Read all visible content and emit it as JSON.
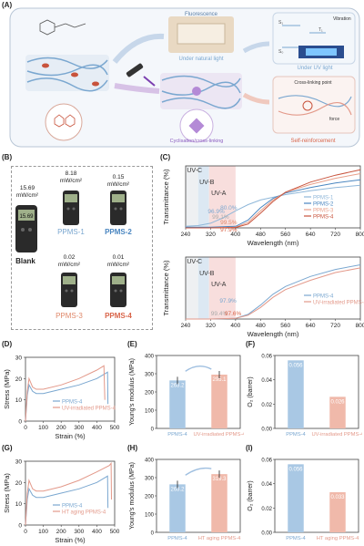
{
  "panels": {
    "A": "(A)",
    "B": "(B)",
    "C": "(C)",
    "D": "(D)",
    "E": "(E)",
    "F": "(F)",
    "G": "(G)",
    "H": "(H)",
    "I": "(I)"
  },
  "panel_a": {
    "fluorescence": "Fluorescence",
    "natural_light": "Under natural light",
    "uv_light": "Under UV light",
    "vibration": "Vibration",
    "cross_link_point": "Cross-linking point",
    "force": "force",
    "cyclisation": "Cyclisation/cross-linking",
    "self_reinforcement": "Self-reinforcement",
    "s1": "S₁",
    "s0": "S₀",
    "t1": "T₁"
  },
  "panel_b": {
    "meters": [
      {
        "value": "15.69",
        "unit": "mW/cm²",
        "name": "Blank",
        "name_color": "#222222",
        "screen": "15.69"
      },
      {
        "value": "8.18",
        "unit": "mW/cm²",
        "name": "PPMS-1",
        "name_color": "#7aa7d0",
        "screen": "8.18"
      },
      {
        "value": "0.15",
        "unit": "mW/cm²",
        "name": "PPMS-2",
        "name_color": "#7aa7d0",
        "screen": "0.15"
      },
      {
        "value": "0.02",
        "unit": "mW/cm²",
        "name": "PPMS-3",
        "name_color": "#e0896b",
        "screen": "0.02"
      },
      {
        "value": "0.01",
        "unit": "mW/cm²",
        "name": "PPMS-4",
        "name_color": "#d9654a",
        "screen": "0.01"
      }
    ]
  },
  "chart_data": [
    {
      "id": "C-top",
      "type": "line",
      "xlabel": "Wavelength (nm)",
      "ylabel": "Transmittance (%)",
      "xlim": [
        240,
        800
      ],
      "xticks": [
        "240",
        "320",
        "400",
        "480",
        "560",
        "640",
        "720",
        "800"
      ],
      "bands": [
        "UV-C",
        "UV-B",
        "UV-A"
      ],
      "annotations": [
        "80.0%",
        "96.9%",
        "99.1%",
        "99.5%",
        "97.9%"
      ],
      "series": [
        {
          "name": "PPMS-1",
          "color": "#8fb7d9",
          "x": [
            240,
            280,
            320,
            360,
            400,
            440,
            480,
            560,
            640,
            720,
            800
          ],
          "y": [
            2,
            3,
            6,
            13,
            22,
            30,
            36,
            43,
            48,
            52,
            55
          ]
        },
        {
          "name": "PPMS-2",
          "color": "#4a86c0",
          "x": [
            240,
            320,
            400,
            440,
            480,
            520,
            560,
            640,
            720,
            800
          ],
          "y": [
            1,
            1,
            2,
            10,
            26,
            38,
            45,
            52,
            58,
            62
          ]
        },
        {
          "name": "PPMS-3",
          "color": "#e8a08a",
          "x": [
            240,
            320,
            400,
            440,
            480,
            520,
            560,
            640,
            720,
            800
          ],
          "y": [
            0,
            0,
            1,
            7,
            22,
            36,
            46,
            56,
            64,
            70
          ]
        },
        {
          "name": "PPMS-4",
          "color": "#c8533c",
          "x": [
            240,
            320,
            400,
            440,
            480,
            520,
            560,
            640,
            720,
            800
          ],
          "y": [
            0,
            0,
            0.5,
            5,
            19,
            34,
            46,
            59,
            68,
            75
          ]
        }
      ]
    },
    {
      "id": "C-bottom",
      "type": "line",
      "xlabel": "Wavelength (nm)",
      "ylabel": "Transmittance (%)",
      "xlim": [
        240,
        800
      ],
      "xticks": [
        "240",
        "320",
        "400",
        "480",
        "560",
        "640",
        "720",
        "800"
      ],
      "bands": [
        "UV-C",
        "UV-B",
        "UV-A"
      ],
      "annotations": [
        "97.9%",
        "99.4%",
        "97.6%"
      ],
      "series": [
        {
          "name": "PPMS-4",
          "color": "#7aa7d0",
          "x": [
            240,
            320,
            400,
            440,
            480,
            520,
            560,
            640,
            720,
            800
          ],
          "y": [
            0,
            0,
            1,
            6,
            18,
            32,
            42,
            55,
            64,
            70
          ]
        },
        {
          "name": "UV-irradiated PPMS-4",
          "color": "#e3998a",
          "x": [
            240,
            320,
            400,
            440,
            480,
            520,
            560,
            640,
            720,
            800
          ],
          "y": [
            0,
            0,
            1,
            5,
            15,
            28,
            38,
            50,
            60,
            66
          ]
        }
      ]
    },
    {
      "id": "D",
      "type": "line",
      "xlabel": "Strain (%)",
      "ylabel": "Stress (MPa)",
      "xlim": [
        0,
        500
      ],
      "ylim": [
        0,
        30
      ],
      "xticks": [
        "0",
        "100",
        "200",
        "300",
        "400",
        "500"
      ],
      "yticks": [
        "0",
        "10",
        "20",
        "30"
      ],
      "series": [
        {
          "name": "PPMS-4",
          "color": "#7aa7d0",
          "x": [
            0,
            10,
            20,
            40,
            60,
            100,
            200,
            300,
            400,
            440,
            460,
            462
          ],
          "y": [
            0,
            12,
            17,
            14,
            13,
            13,
            15,
            17,
            20,
            22,
            23,
            8
          ]
        },
        {
          "name": "UV-irradiated PPMS-4",
          "color": "#e3998a",
          "x": [
            0,
            10,
            20,
            40,
            60,
            100,
            200,
            300,
            400,
            440,
            445
          ],
          "y": [
            0,
            14,
            20,
            16,
            15,
            15,
            17,
            20,
            24,
            26,
            10
          ]
        }
      ]
    },
    {
      "id": "E",
      "type": "bar",
      "ylabel": "Young's modulus (MPa)",
      "ylim": [
        0,
        400
      ],
      "yticks": [
        "0",
        "100",
        "200",
        "300",
        "400"
      ],
      "categories": [
        "PPMS-4",
        "UV-irradiated PPMS-4"
      ],
      "values": [
        263.2,
        295.1
      ],
      "value_labels": [
        "263.2",
        "295.1"
      ],
      "colors": [
        "#a9c8e4",
        "#f0b9aa"
      ]
    },
    {
      "id": "F",
      "type": "bar",
      "ylabel": "O₂ (barrer)",
      "ylim": [
        0,
        0.06
      ],
      "yticks": [
        "0.00",
        "0.02",
        "0.04",
        "0.06"
      ],
      "categories": [
        "PPMS-4",
        "UV-irradiated PPMS-4"
      ],
      "values": [
        0.056,
        0.026
      ],
      "value_labels": [
        "0.056",
        "0.026"
      ],
      "colors": [
        "#a9c8e4",
        "#f0b9aa"
      ]
    },
    {
      "id": "G",
      "type": "line",
      "xlabel": "Strain (%)",
      "ylabel": "Stress (MPa)",
      "xlim": [
        0,
        500
      ],
      "ylim": [
        0,
        30
      ],
      "xticks": [
        "0",
        "100",
        "200",
        "300",
        "400",
        "500"
      ],
      "yticks": [
        "0",
        "10",
        "20",
        "30"
      ],
      "series": [
        {
          "name": "PPMS-4",
          "color": "#7aa7d0",
          "x": [
            0,
            10,
            20,
            40,
            60,
            100,
            200,
            300,
            400,
            440,
            460,
            462
          ],
          "y": [
            0,
            12,
            17,
            14,
            13,
            13,
            15,
            17,
            20,
            22,
            23,
            8
          ]
        },
        {
          "name": "HT aging PPMS-4",
          "color": "#e3998a",
          "x": [
            0,
            10,
            20,
            40,
            60,
            100,
            200,
            300,
            400,
            470,
            480,
            482
          ],
          "y": [
            0,
            15,
            21,
            17,
            16,
            16,
            18,
            21,
            25,
            28,
            29,
            12
          ]
        }
      ]
    },
    {
      "id": "H",
      "type": "bar",
      "ylabel": "Young's modulus (MPa)",
      "ylim": [
        0,
        400
      ],
      "yticks": [
        "0",
        "100",
        "200",
        "300",
        "400"
      ],
      "categories": [
        "PPMS-4",
        "HT aging PPMS-4"
      ],
      "values": [
        263.2,
        319.3
      ],
      "value_labels": [
        "263.2",
        "319.3"
      ],
      "colors": [
        "#a9c8e4",
        "#f0b9aa"
      ]
    },
    {
      "id": "I",
      "type": "bar",
      "ylabel": "O₂ (barrer)",
      "ylim": [
        0,
        0.06
      ],
      "yticks": [
        "0.00",
        "0.02",
        "0.04",
        "0.06"
      ],
      "categories": [
        "PPMS-4",
        "HT aging PPMS-4"
      ],
      "values": [
        0.056,
        0.033
      ],
      "value_labels": [
        "0.056",
        "0.033"
      ],
      "colors": [
        "#a9c8e4",
        "#f0b9aa"
      ]
    }
  ]
}
